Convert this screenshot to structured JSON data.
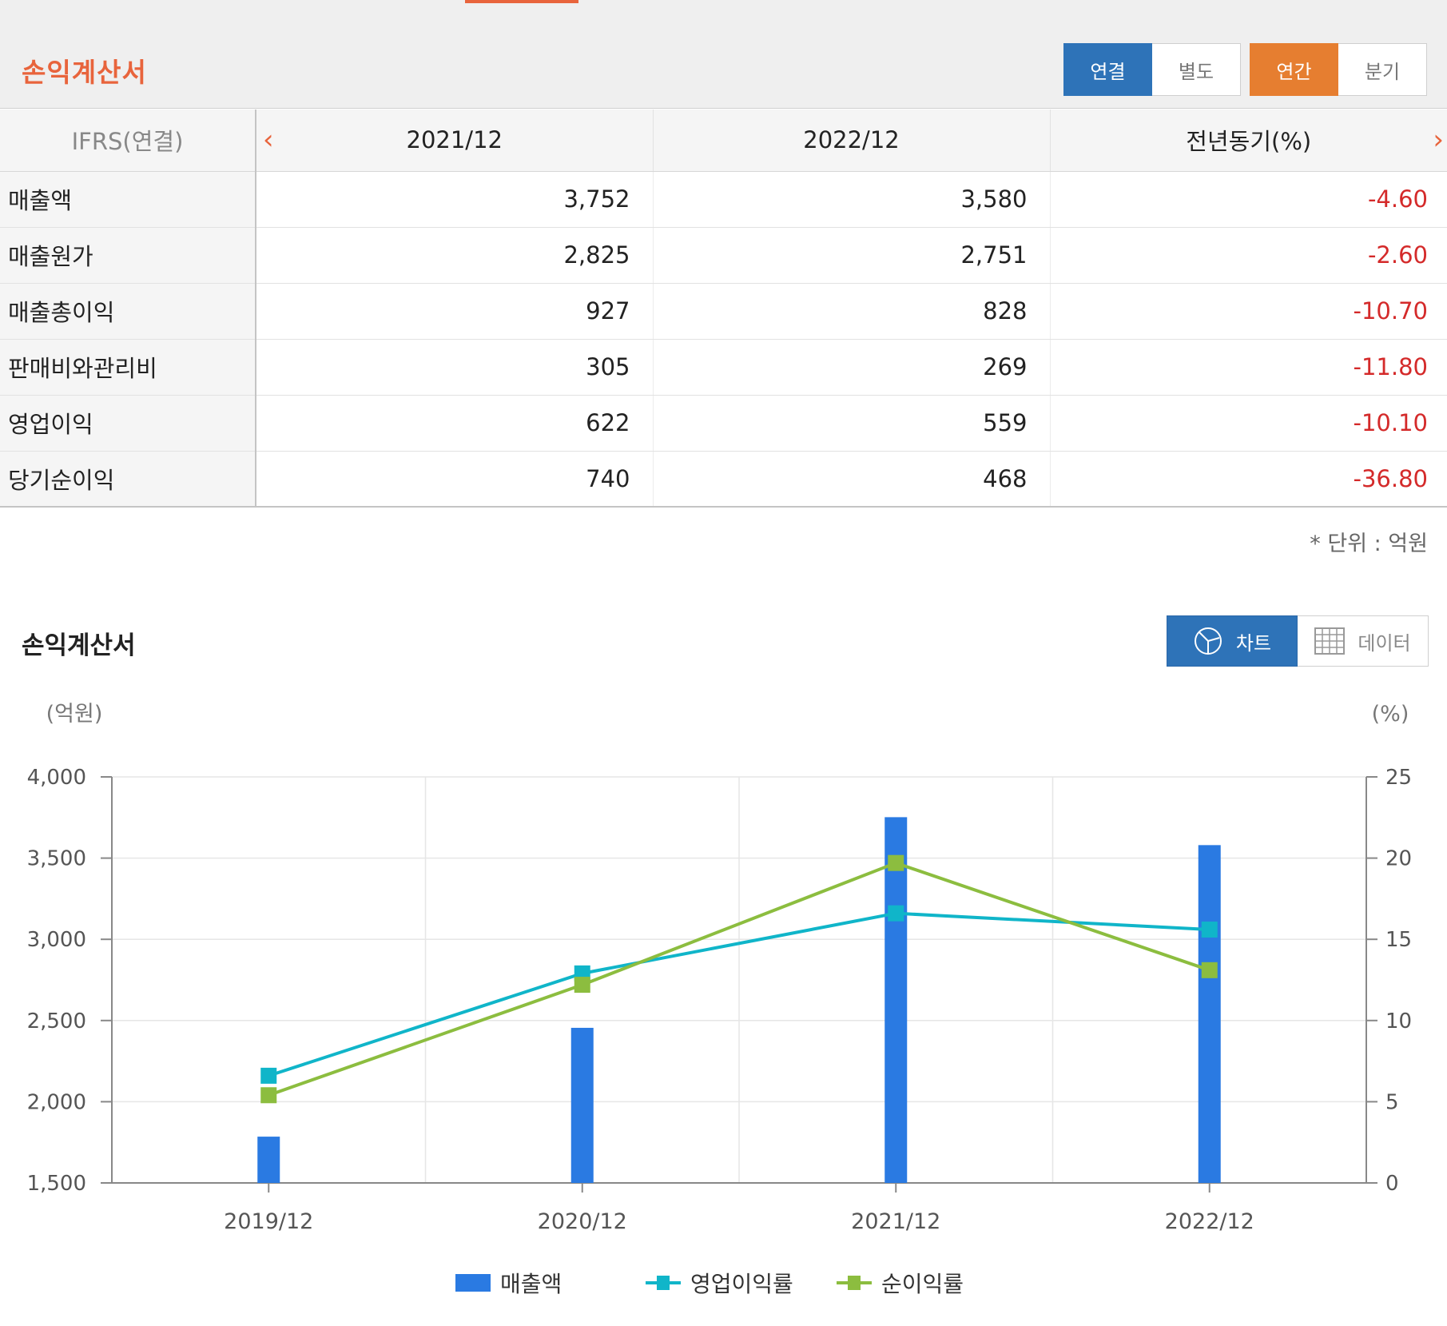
{
  "statement": {
    "title": "손익계산서",
    "scope_buttons": [
      "연결",
      "별도"
    ],
    "period_buttons": [
      "연간",
      "분기"
    ],
    "active_scope": "연결",
    "active_period": "연간",
    "prev_arrow": "‹",
    "next_arrow": "›",
    "columns": [
      "IFRS(연결)",
      "2021/12",
      "2022/12",
      "전년동기(%)"
    ],
    "rows": [
      {
        "label": "매출액",
        "v2021": "3,752",
        "v2022": "3,580",
        "yoy": "-4.60"
      },
      {
        "label": "매출원가",
        "v2021": "2,825",
        "v2022": "2,751",
        "yoy": "-2.60"
      },
      {
        "label": "매출총이익",
        "v2021": "927",
        "v2022": "828",
        "yoy": "-10.70"
      },
      {
        "label": "판매비와관리비",
        "v2021": "305",
        "v2022": "269",
        "yoy": "-11.80"
      },
      {
        "label": "영업이익",
        "v2021": "622",
        "v2022": "559",
        "yoy": "-10.10"
      },
      {
        "label": "당기순이익",
        "v2021": "740",
        "v2022": "468",
        "yoy": "-36.80"
      }
    ],
    "unit_note": "* 단위 : 억원"
  },
  "chart_section": {
    "title": "손익계산서",
    "chart_button": "차트",
    "data_button": "데이터",
    "active_view": "차트"
  },
  "colors": {
    "accent": "#e8643c",
    "blue": "#2e73b8",
    "orange": "#e67e30",
    "negative": "#d42a2a",
    "bar": "#2a7ae2",
    "op_margin": "#10b5c9",
    "net_margin": "#8cbd3f"
  },
  "chart_data": {
    "type": "bar",
    "categories": [
      "2019/12",
      "2020/12",
      "2021/12",
      "2022/12"
    ],
    "left_axis": {
      "label": "(억원)",
      "ylim": [
        1500,
        4000
      ],
      "ticks": [
        "4,000",
        "3,500",
        "3,000",
        "2,500",
        "2,000",
        "1,500"
      ],
      "tick_values": [
        4000,
        3500,
        3000,
        2500,
        2000,
        1500
      ]
    },
    "right_axis": {
      "label": "(%)",
      "ylim": [
        0,
        25
      ],
      "ticks": [
        "25",
        "20",
        "15",
        "10",
        "5",
        "0"
      ],
      "tick_values": [
        25,
        20,
        15,
        10,
        5,
        0
      ]
    },
    "series": [
      {
        "name": "매출액",
        "type": "bar",
        "axis": "left",
        "values": [
          1785,
          2455,
          3752,
          3580
        ]
      },
      {
        "name": "영업이익률",
        "type": "line",
        "axis": "right",
        "values": [
          6.6,
          12.9,
          16.6,
          15.6
        ]
      },
      {
        "name": "순이익률",
        "type": "line",
        "axis": "right",
        "values": [
          5.4,
          12.2,
          19.7,
          13.1
        ]
      }
    ],
    "grid": true,
    "legend_position": "bottom"
  }
}
